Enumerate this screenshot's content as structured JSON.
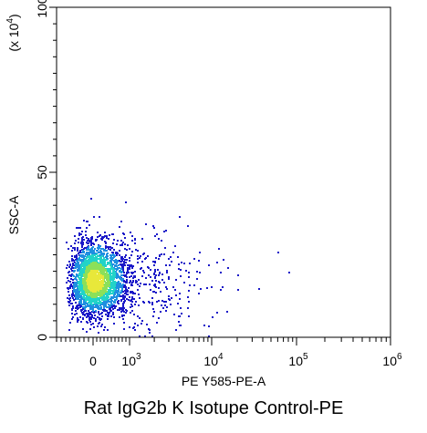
{
  "chart_data": {
    "type": "scatter",
    "subtype": "flow-cytometry-density-dot-plot",
    "title": "Rat IgG2b K Isotupe Control-PE",
    "xlabel": "PE Y585-PE-A",
    "ylabel": "SSC-A",
    "y_multiplier_label": "(x 10",
    "y_multiplier_exp": "4",
    "y_multiplier_close": ")",
    "x_scale": "biexponential",
    "x_ticks": [
      {
        "value": 0,
        "base": "0",
        "exp": ""
      },
      {
        "value": 1000,
        "base": "10",
        "exp": "3"
      },
      {
        "value": 10000,
        "base": "10",
        "exp": "4"
      },
      {
        "value": 100000,
        "base": "10",
        "exp": "5"
      },
      {
        "value": 1000000,
        "base": "10",
        "exp": "6"
      }
    ],
    "y_ticks": [
      {
        "value": 0,
        "label": "0"
      },
      {
        "value": 50,
        "label": "50"
      },
      {
        "value": 100,
        "label": "100"
      }
    ],
    "ylim": [
      0,
      100
    ],
    "grid": false,
    "density_colormap": [
      "#1a18c8",
      "#1f8fe0",
      "#22d3c8",
      "#8be05a",
      "#e8e83a"
    ],
    "main_population": {
      "x_center": 0,
      "y_center": 17,
      "y_spread": 5,
      "density": "high"
    },
    "sparse_events": [
      {
        "x": 1500,
        "y": 24
      },
      {
        "x": 2200,
        "y": 30
      },
      {
        "x": 3500,
        "y": 28
      },
      {
        "x": 5000,
        "y": 34
      },
      {
        "x": 7000,
        "y": 26
      },
      {
        "x": 9000,
        "y": 22
      },
      {
        "x": 12000,
        "y": 27
      },
      {
        "x": 20000,
        "y": 19
      },
      {
        "x": 35000,
        "y": 15
      },
      {
        "x": 60000,
        "y": 26
      },
      {
        "x": 80000,
        "y": 20
      },
      {
        "x": 15000,
        "y": 8
      },
      {
        "x": 4000,
        "y": 12
      },
      {
        "x": 2800,
        "y": 20
      }
    ]
  }
}
